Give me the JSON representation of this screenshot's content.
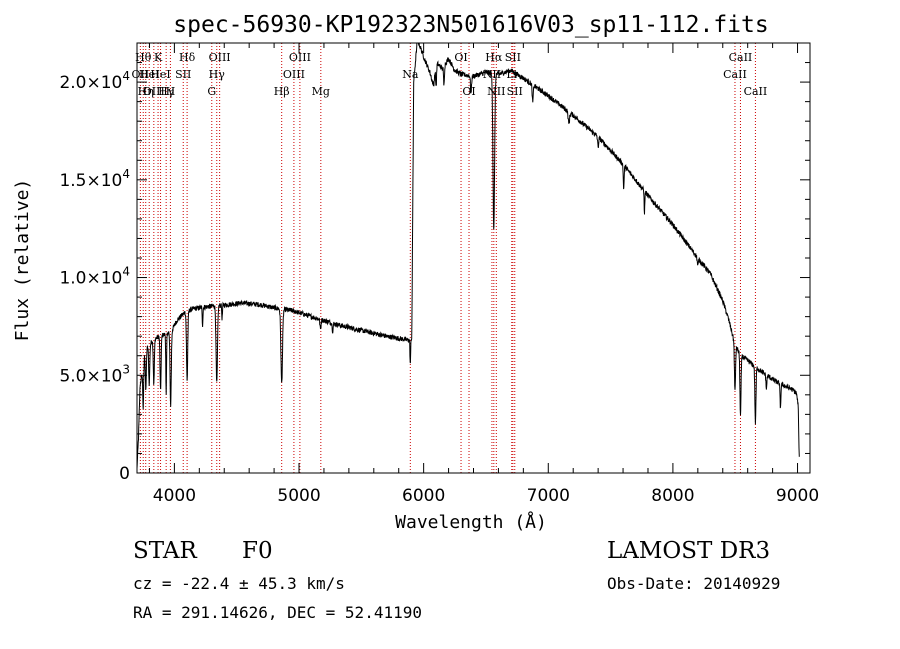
{
  "chart_data": {
    "type": "line",
    "title": "spec-56930-KP192323N501616V03_sp11-112.fits",
    "xlabel": "Wavelength (Å)",
    "ylabel": "Flux (relative)",
    "xlim": [
      3700,
      9100
    ],
    "ylim": [
      0,
      22000
    ],
    "xticks": [
      4000,
      5000,
      6000,
      7000,
      8000,
      9000
    ],
    "xtick_labels": [
      "4000",
      "5000",
      "6000",
      "7000",
      "8000",
      "9000"
    ],
    "yticks": [
      0,
      5000,
      10000,
      15000,
      20000
    ],
    "ytick_labels": [
      {
        "mant": "0",
        "exp": ""
      },
      {
        "mant": "5.0×10",
        "exp": "3"
      },
      {
        "mant": "1.0×10",
        "exp": "4"
      },
      {
        "mant": "1.5×10",
        "exp": "4"
      },
      {
        "mant": "2.0×10",
        "exp": "4"
      }
    ],
    "series": [
      {
        "name": "flux",
        "continuum": [
          [
            3700,
            200
          ],
          [
            3712,
            1800
          ],
          [
            3725,
            4500
          ],
          [
            3740,
            5000
          ],
          [
            3760,
            6000
          ],
          [
            3790,
            6500
          ],
          [
            3830,
            6800
          ],
          [
            3880,
            7000
          ],
          [
            3930,
            7100
          ],
          [
            3980,
            7300
          ],
          [
            4020,
            7800
          ],
          [
            4080,
            8200
          ],
          [
            4150,
            8400
          ],
          [
            4250,
            8500
          ],
          [
            4400,
            8600
          ],
          [
            4550,
            8700
          ],
          [
            4700,
            8600
          ],
          [
            4800,
            8450
          ],
          [
            4950,
            8300
          ],
          [
            5100,
            8000
          ],
          [
            5300,
            7600
          ],
          [
            5500,
            7300
          ],
          [
            5700,
            7000
          ],
          [
            5880,
            6800
          ],
          [
            5905,
            6900
          ],
          [
            5920,
            20000
          ],
          [
            5950,
            22200
          ],
          [
            6000,
            21300
          ],
          [
            6050,
            20500
          ],
          [
            6080,
            19800
          ],
          [
            6100,
            21000
          ],
          [
            6150,
            20700
          ],
          [
            6200,
            21200
          ],
          [
            6250,
            20600
          ],
          [
            6300,
            20400
          ],
          [
            6400,
            20300
          ],
          [
            6500,
            20500
          ],
          [
            6600,
            20400
          ],
          [
            6700,
            20600
          ],
          [
            6800,
            20200
          ],
          [
            7000,
            19300
          ],
          [
            7200,
            18300
          ],
          [
            7400,
            17200
          ],
          [
            7600,
            15800
          ],
          [
            7800,
            14200
          ],
          [
            8000,
            12700
          ],
          [
            8200,
            11000
          ],
          [
            8300,
            10200
          ],
          [
            8400,
            8800
          ],
          [
            8450,
            7800
          ],
          [
            8500,
            6500
          ],
          [
            8550,
            6000
          ],
          [
            8650,
            5500
          ],
          [
            8750,
            5000
          ],
          [
            8850,
            4600
          ],
          [
            8950,
            4300
          ],
          [
            8990,
            4100
          ],
          [
            9005,
            3500
          ],
          [
            9015,
            400
          ]
        ],
        "absorption_lines": [
          [
            3750,
            2200,
            5
          ],
          [
            3771,
            2000,
            5
          ],
          [
            3798,
            2000,
            6
          ],
          [
            3835,
            2300,
            6
          ],
          [
            3889,
            2800,
            6
          ],
          [
            3934,
            3200,
            4
          ],
          [
            3970,
            3800,
            7
          ],
          [
            4102,
            3500,
            7
          ],
          [
            4226,
            900,
            4
          ],
          [
            4340,
            4000,
            8
          ],
          [
            4383,
            700,
            4
          ],
          [
            4861,
            3800,
            9
          ],
          [
            5172,
            500,
            6
          ],
          [
            5270,
            400,
            5
          ],
          [
            5893,
            1300,
            4
          ],
          [
            6100,
            1200,
            5
          ],
          [
            6163,
            1000,
            5
          ],
          [
            6380,
            900,
            6
          ],
          [
            6563,
            8000,
            9
          ],
          [
            6875,
            900,
            6
          ],
          [
            7165,
            600,
            8
          ],
          [
            7400,
            500,
            6
          ],
          [
            7605,
            1200,
            5
          ],
          [
            7772,
            1100,
            4
          ],
          [
            8200,
            400,
            6
          ],
          [
            8498,
            2400,
            6
          ],
          [
            8542,
            3200,
            6
          ],
          [
            8662,
            2900,
            6
          ],
          [
            8750,
            700,
            5
          ],
          [
            8863,
            1200,
            5
          ]
        ]
      }
    ],
    "line_markers": [
      {
        "x": 3727,
        "label": "OII",
        "row": 1
      },
      {
        "x": 3750,
        "label": "Hθ",
        "row": 0
      },
      {
        "x": 3770,
        "label": "Hη",
        "row": 2
      },
      {
        "x": 3798,
        "label": "HeI",
        "row": 1
      },
      {
        "x": 3835,
        "label": "OIII",
        "row": 2
      },
      {
        "x": 3869,
        "label": "K",
        "row": 0
      },
      {
        "x": 3889,
        "label": "HeI",
        "row": 1
      },
      {
        "x": 3934,
        "label": "Hγ",
        "row": 2
      },
      {
        "x": 3968,
        "label": "H",
        "row": 2
      },
      {
        "x": 4071,
        "label": "SII",
        "row": 1
      },
      {
        "x": 4102,
        "label": "Hδ",
        "row": 0
      },
      {
        "x": 4300,
        "label": "G",
        "row": 2
      },
      {
        "x": 4340,
        "label": "Hγ",
        "row": 1
      },
      {
        "x": 4363,
        "label": "OIII",
        "row": 0
      },
      {
        "x": 4861,
        "label": "Hβ",
        "row": 2
      },
      {
        "x": 4959,
        "label": "OIII",
        "row": 1
      },
      {
        "x": 5007,
        "label": "OIII",
        "row": 0
      },
      {
        "x": 5175,
        "label": "Mg",
        "row": 2
      },
      {
        "x": 5893,
        "label": "Na",
        "row": 1
      },
      {
        "x": 6300,
        "label": "OI",
        "row": 0
      },
      {
        "x": 6364,
        "label": "OI",
        "row": 2
      },
      {
        "x": 6548,
        "label": "NII",
        "row": 1
      },
      {
        "x": 6563,
        "label": "Hα",
        "row": 0
      },
      {
        "x": 6583,
        "label": "NII",
        "row": 2
      },
      {
        "x": 6707,
        "label": "Li",
        "row": 1
      },
      {
        "x": 6716,
        "label": "SII",
        "row": 0
      },
      {
        "x": 6731,
        "label": "SII",
        "row": 2
      },
      {
        "x": 8498,
        "label": "CaII",
        "row": 1
      },
      {
        "x": 8542,
        "label": "CaII",
        "row": 0
      },
      {
        "x": 8662,
        "label": "CaII",
        "row": 2
      }
    ],
    "colors": {
      "spectrum": "#000000",
      "marker": "#cc0000",
      "axes": "#000000",
      "background": "#ffffff"
    }
  },
  "info": {
    "class_label": "STAR",
    "subclass": "F0",
    "survey": "LAMOST DR3",
    "redshift_text": "cz = -22.4 ± 45.3 km/s",
    "obs_date": "Obs-Date: 20140929",
    "coords": "RA = 291.14626, DEC =  52.41190"
  }
}
